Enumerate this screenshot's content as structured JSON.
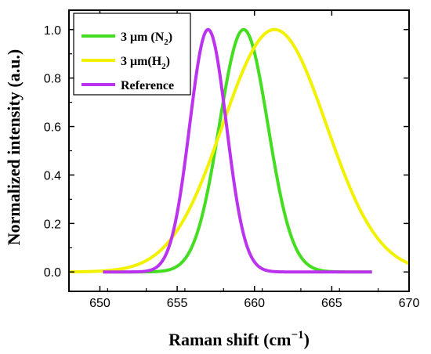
{
  "chart_data": {
    "type": "line",
    "xlabel_base": "Raman shift (cm",
    "xlabel_sup": "−1",
    "xlabel_close": ")",
    "ylabel": "Normalized intensity (a.u.)",
    "xlim": [
      648,
      670
    ],
    "ylim": [
      -0.08,
      1.08
    ],
    "xticks": [
      650,
      655,
      660,
      665,
      670
    ],
    "xtick_labels": [
      "650",
      "655",
      "660",
      "665",
      "670"
    ],
    "yticks": [
      0.0,
      0.2,
      0.4,
      0.6,
      0.8,
      1.0
    ],
    "ytick_labels": [
      "0.0",
      "0.2",
      "0.4",
      "0.6",
      "0.8",
      "1.0"
    ],
    "legend_position": "top-left",
    "series": [
      {
        "name": "3 μm (N₂)",
        "legend_main": "3 μm (N",
        "legend_sub": "2",
        "legend_tail": ")",
        "color": "#44dd22",
        "center": 659.3,
        "fwhm": 3.7,
        "x_range": [
          650.2,
          667.6
        ]
      },
      {
        "name": "3 μm(H₂)",
        "legend_main": "3 μm(H",
        "legend_sub": "2",
        "legend_tail": ")",
        "color": "#f2f200",
        "center": 661.3,
        "fwhm": 7.9,
        "x_range": [
          648.0,
          670.0
        ]
      },
      {
        "name": "Reference",
        "legend_main": "Reference",
        "legend_sub": "",
        "legend_tail": "",
        "color": "#bb33ee",
        "center": 657.0,
        "fwhm": 2.8,
        "x_range": [
          650.2,
          667.6
        ]
      }
    ]
  }
}
